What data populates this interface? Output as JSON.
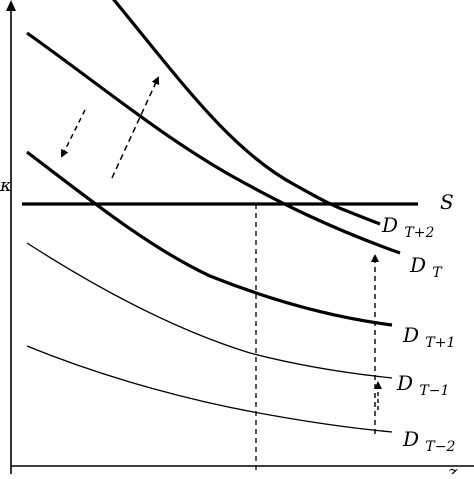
{
  "axes": {
    "y_label": "κ",
    "x_label": "z"
  },
  "supply": {
    "label": "S"
  },
  "demand_curves": [
    {
      "name": "DT+2",
      "main": "D",
      "sub": "T+2"
    },
    {
      "name": "DT",
      "main": "D",
      "sub": "T"
    },
    {
      "name": "DT+1",
      "main": "D",
      "sub": "T+1"
    },
    {
      "name": "DT-1",
      "main": "D",
      "sub": "T−1"
    },
    {
      "name": "DT-2",
      "main": "D",
      "sub": "T−2"
    }
  ]
}
